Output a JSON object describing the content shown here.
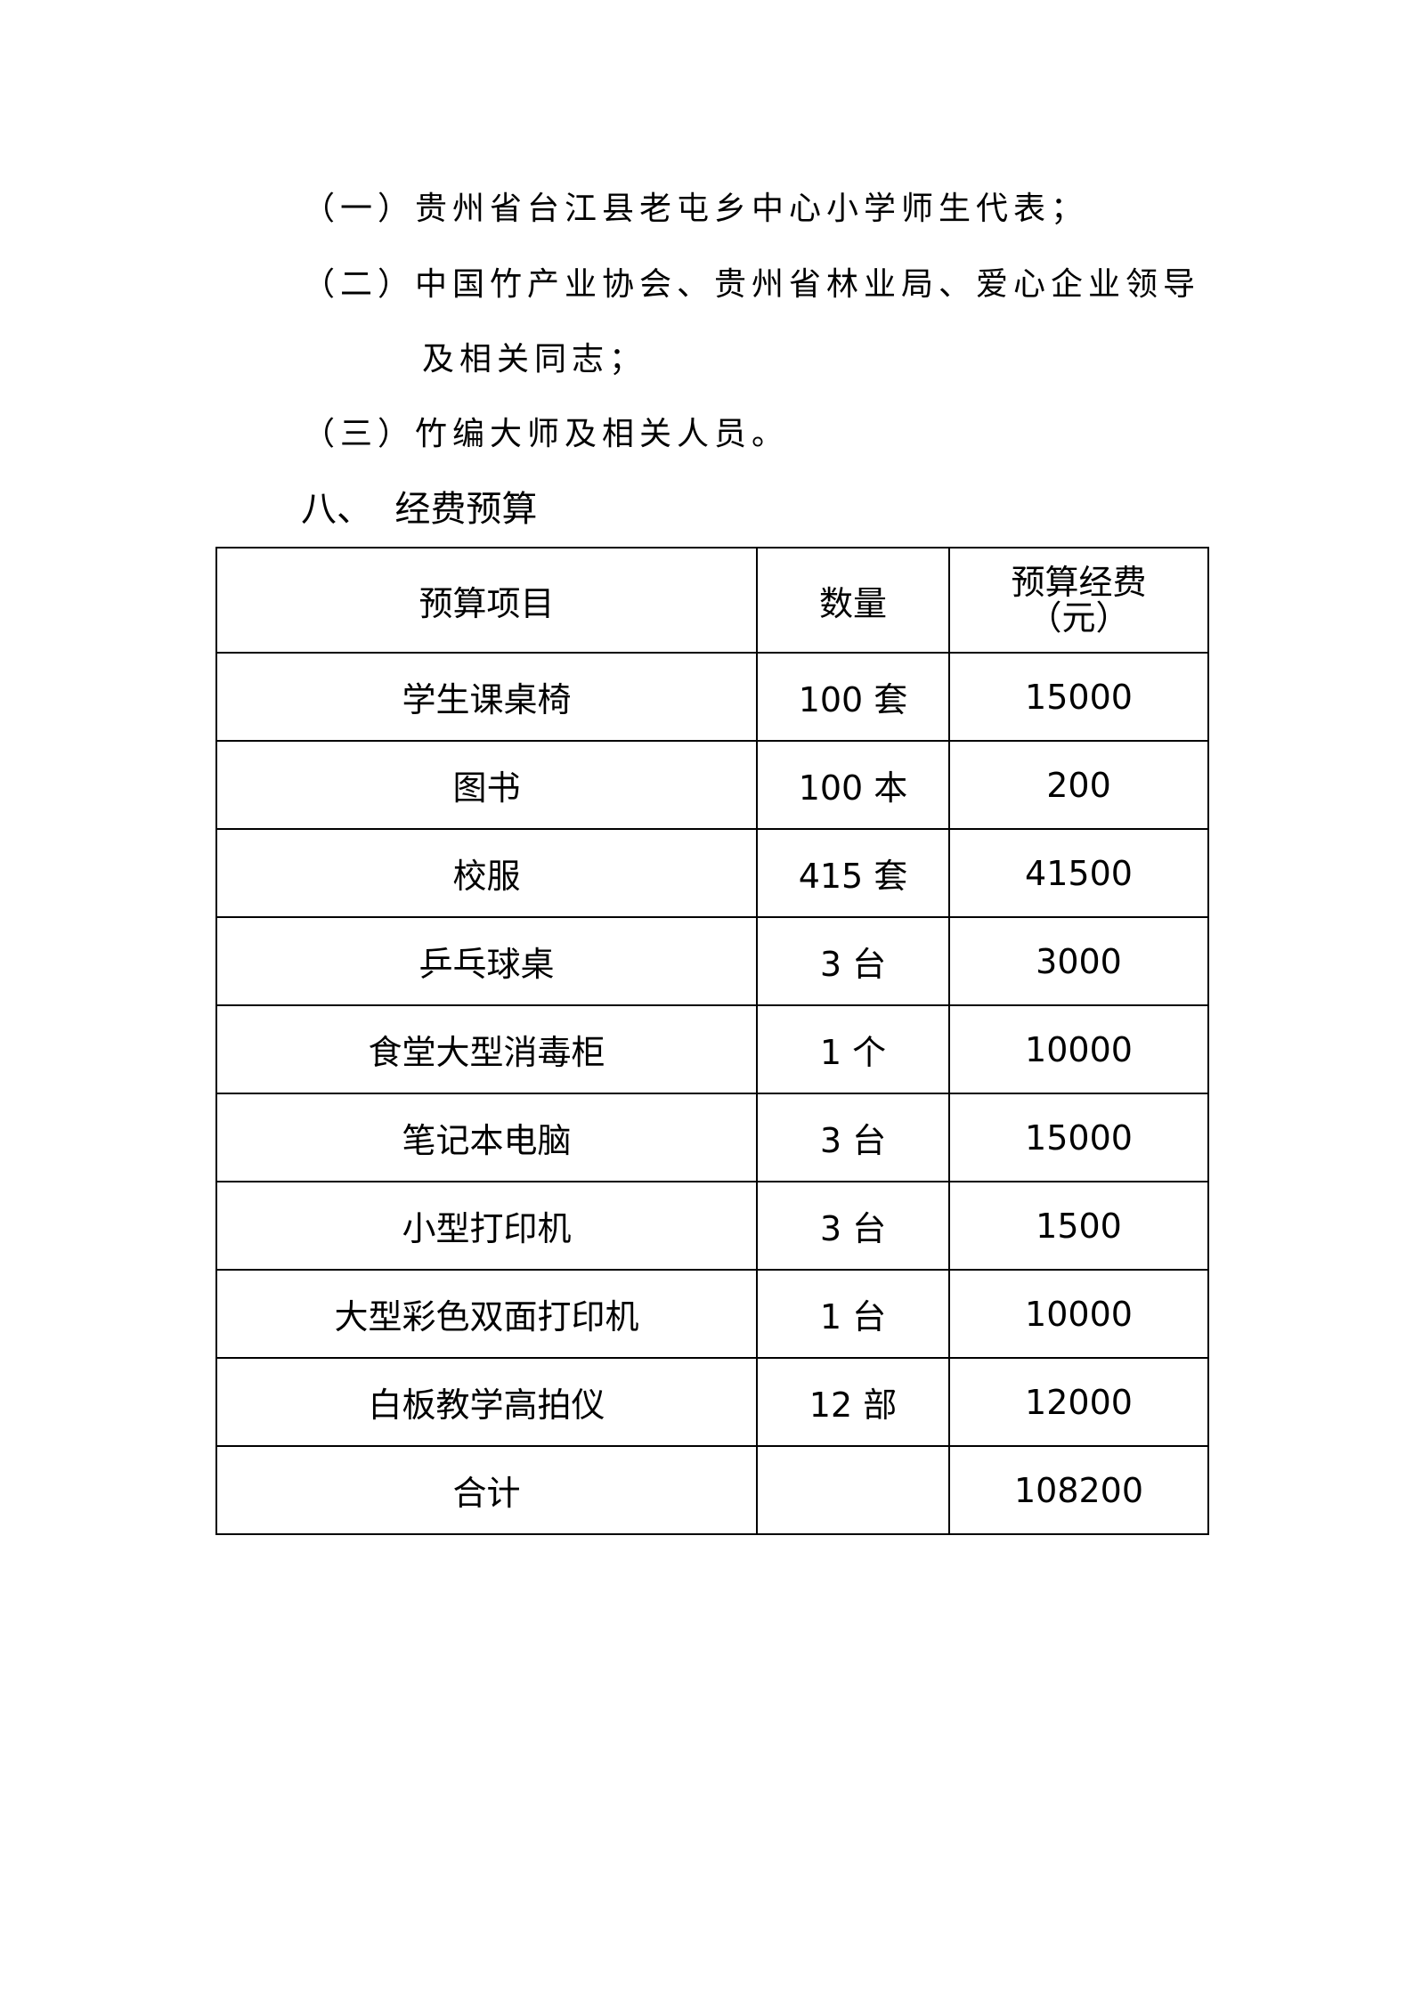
{
  "list_items": [
    "（一）贵州省台江县老屯乡中心小学师生代表；",
    "（二）中国竹产业协会、贵州省林业局、爱心企业领导",
    "及相关同志；",
    "（三）竹编大师及相关人员。"
  ],
  "section_heading": "八、  经费预算",
  "table": {
    "headers": [
      "预算项目",
      "数量",
      "预算经费",
      "（元）"
    ],
    "rows": [
      [
        "学生课桌椅",
        "100 套",
        "15000"
      ],
      [
        "图书",
        "100 本",
        "200"
      ],
      [
        "校服",
        "415 套",
        "41500"
      ],
      [
        "乒乓球桌",
        "3 台",
        "3000"
      ],
      [
        "食堂大型消毒柜",
        "1 个",
        "10000"
      ],
      [
        "笔记本电脑",
        "3 台",
        "15000"
      ],
      [
        "小型打印机",
        "3 台",
        "1500"
      ],
      [
        "大型彩色双面打印机",
        "1 台",
        "10000"
      ],
      [
        "白板教学高拍仪",
        "12 部",
        "12000"
      ],
      [
        "合计",
        "",
        "108200"
      ]
    ]
  }
}
